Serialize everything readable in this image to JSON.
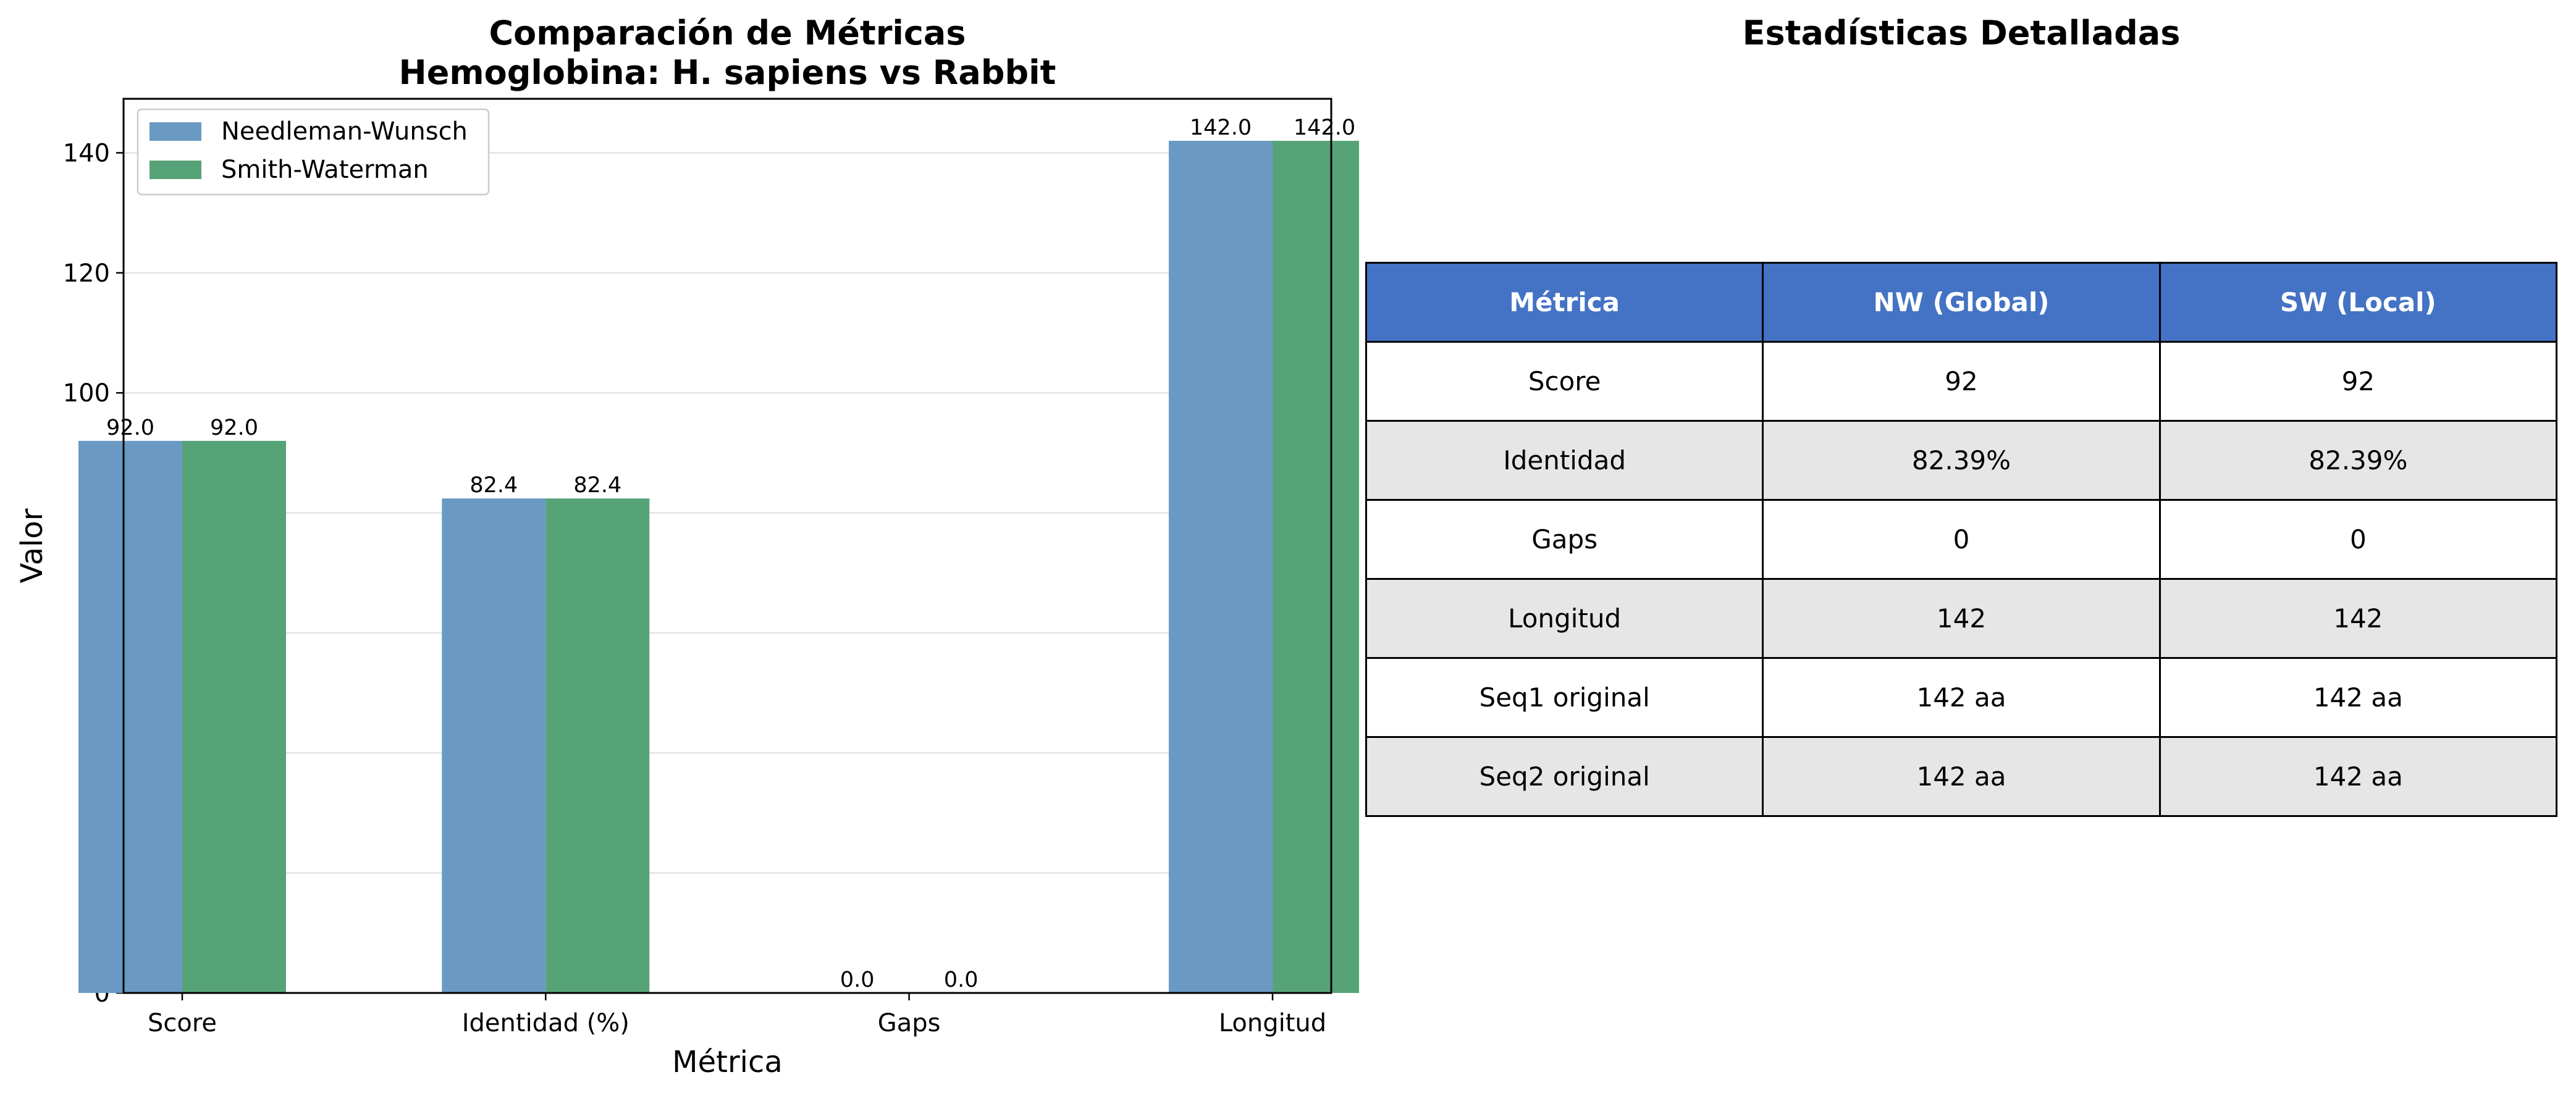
{
  "chart_data": {
    "type": "bar",
    "title": "Comparación de Métricas",
    "subtitle": "Hemoglobina: H. sapiens vs Rabbit",
    "xlabel": "Métrica",
    "ylabel": "Valor",
    "categories": [
      "Score",
      "Identidad (%)",
      "Gaps",
      "Longitud"
    ],
    "series": [
      {
        "name": "Needleman-Wunsch",
        "values": [
          92.0,
          82.4,
          0.0,
          142.0
        ],
        "color": "#6a9ac4",
        "labels": [
          "92.0",
          "82.4",
          "0.0",
          "142.0"
        ]
      },
      {
        "name": "Smith-Waterman",
        "values": [
          92.0,
          82.4,
          0.0,
          142.0
        ],
        "color": "#57a378",
        "labels": [
          "92.0",
          "82.4",
          "0.0",
          "142.0"
        ]
      }
    ],
    "ylim": [
      0,
      149
    ],
    "yticks": [
      "0",
      "20",
      "40",
      "60",
      "80",
      "100",
      "120",
      "140"
    ],
    "grid": true,
    "legend": "top-left"
  },
  "table": {
    "title": "Estadísticas Detalladas",
    "headers": [
      "Métrica",
      "NW (Global)",
      "SW (Local)"
    ],
    "header_color": "#4472c4",
    "rows": [
      [
        "Score",
        "92",
        "92"
      ],
      [
        "Identidad",
        "82.39%",
        "82.39%"
      ],
      [
        "Gaps",
        "0",
        "0"
      ],
      [
        "Longitud",
        "142",
        "142"
      ],
      [
        "Seq1 original",
        "142 aa",
        "142 aa"
      ],
      [
        "Seq2 original",
        "142 aa",
        "142 aa"
      ]
    ]
  }
}
